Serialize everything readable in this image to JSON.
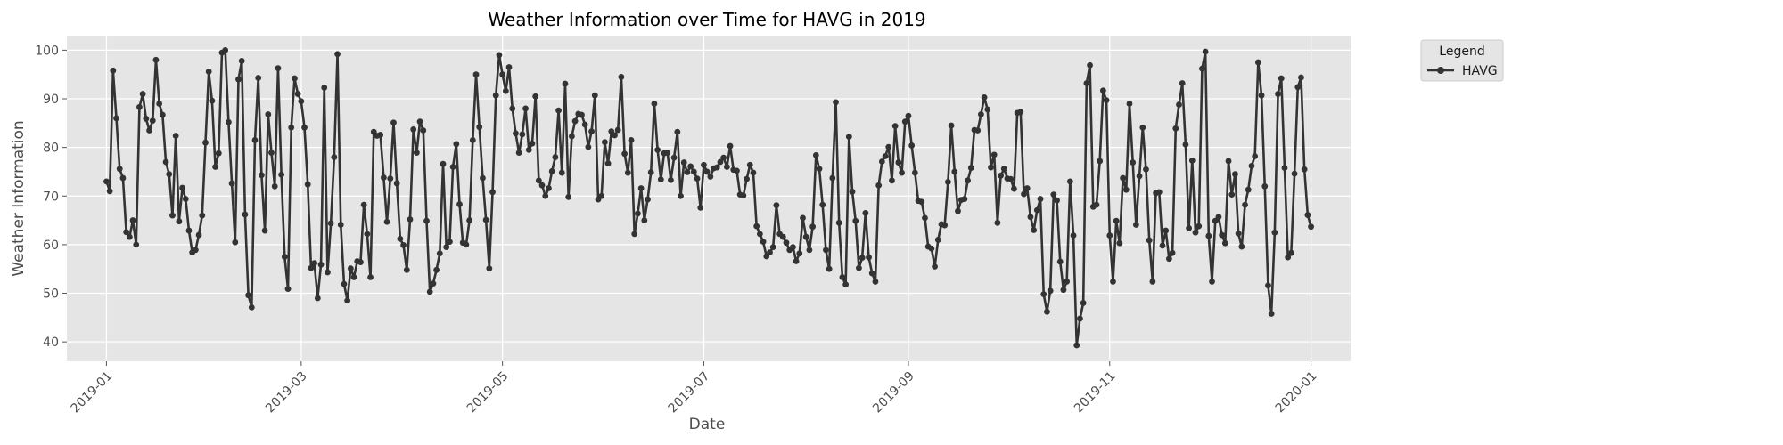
{
  "chart_data": {
    "type": "line",
    "title": "Weather Information over Time for HAVG in 2019",
    "xlabel": "Date",
    "ylabel": "Weather Information",
    "xlim": [
      "2018-12-20",
      "2020-01-13"
    ],
    "ylim": [
      36,
      103
    ],
    "x_ticks": [
      "2019-01",
      "2019-03",
      "2019-05",
      "2019-07",
      "2019-09",
      "2019-11",
      "2020-01"
    ],
    "y_ticks": [
      40,
      50,
      60,
      70,
      80,
      90,
      100
    ],
    "grid": true,
    "legend": {
      "title": "Legend",
      "placement": "outside-right-top",
      "entries": [
        "HAVG"
      ]
    },
    "colors": {
      "background": "#e5e5e5",
      "grid": "#ffffff",
      "line": "#333333"
    },
    "series": [
      {
        "name": "HAVG",
        "start_date": "2019-01-01",
        "frequency": "daily",
        "values": [
          73,
          71,
          95.8,
          86,
          75.6,
          73.7,
          62.6,
          61.6,
          65,
          60,
          88.3,
          91,
          85.9,
          83.5,
          85.5,
          98,
          89,
          86.7,
          77,
          74.5,
          66,
          82.4,
          64.8,
          71.7,
          69.4,
          62.9,
          58.4,
          58.9,
          62,
          66,
          81,
          95.6,
          89.6,
          76,
          78.8,
          99.5,
          100,
          85.2,
          72.6,
          60.5,
          94,
          97.8,
          66.2,
          49.6,
          47.1,
          81.5,
          94.3,
          74.3,
          62.9,
          86.8,
          78.9,
          72,
          96.3,
          74.4,
          57.5,
          50.9,
          84.1,
          94.2,
          91,
          89.5,
          84.1,
          72.4,
          55.2,
          56.2,
          49,
          55.9,
          92.3,
          54.3,
          64.4,
          78,
          99.2,
          64.1,
          51.9,
          48.5,
          55.1,
          53.3,
          56.6,
          56.4,
          68.2,
          62.2,
          53.3,
          83.2,
          82.4,
          82.6,
          73.8,
          64.7,
          73.6,
          85.1,
          72.6,
          61.2,
          59.9,
          54.8,
          65.2,
          83.7,
          78.9,
          85.3,
          83.5,
          64.9,
          50.3,
          52,
          54.8,
          58.2,
          76.6,
          59.5,
          60.6,
          76,
          80.7,
          68.3,
          60.4,
          60,
          65,
          81.5,
          95,
          84.2,
          73.7,
          65.1,
          55.1,
          70.8,
          90.7,
          99,
          95,
          91.6,
          96.5,
          88,
          82.9,
          78.9,
          82.7,
          88,
          79.5,
          80.8,
          90.5,
          73.2,
          72.2,
          70,
          71.6,
          75.1,
          78,
          87.6,
          74.8,
          93.1,
          69.8,
          82.3,
          85.4,
          86.9,
          86.7,
          84.7,
          80.1,
          83.3,
          90.7,
          69.3,
          70,
          81.1,
          76.7,
          83.3,
          82.5,
          83.6,
          94.5,
          78.7,
          74.8,
          81.5,
          62.2,
          66.4,
          71.6,
          65,
          69.3,
          74.9,
          89,
          79.5,
          73.4,
          78.8,
          78.9,
          73.3,
          77.9,
          83.2,
          70,
          76.9,
          74.9,
          76.1,
          75,
          73.6,
          67.6,
          76.4,
          75,
          74,
          75.7,
          75.9,
          77,
          77.9,
          76,
          80.3,
          75.4,
          75.2,
          70.3,
          70.1,
          73.5,
          76.4,
          74.8,
          63.8,
          62.2,
          60.6,
          57.6,
          58.4,
          59.5,
          68.1,
          62.2,
          61.6,
          60.4,
          58.9,
          59.5,
          56.6,
          58.2,
          65.5,
          61.6,
          58.9,
          63.7,
          78.4,
          75.6,
          68.2,
          58.9,
          55,
          73.7,
          89.3,
          64.5,
          53.3,
          51.8,
          82.2,
          70.9,
          64.9,
          55.2,
          57.3,
          66.5,
          57.4,
          54.1,
          52.4,
          72.2,
          77.1,
          78.2,
          80.1,
          73.2,
          84.4,
          76.9,
          74.8,
          85.3,
          86.5,
          80.4,
          74.8,
          69,
          68.8,
          65.5,
          59.6,
          59.2,
          55.5,
          61,
          64.2,
          64,
          72.9,
          84.5,
          75,
          66.9,
          69.2,
          69.4,
          73.2,
          75.8,
          83.6,
          83.5,
          86.8,
          90.3,
          87.8,
          75.9,
          78.5,
          64.5,
          74.2,
          75.6,
          73.6,
          73.5,
          71.5,
          87.1,
          87.3,
          70.4,
          71.6,
          65.7,
          63,
          67.1,
          69.4,
          49.8,
          46.2,
          50.5,
          70.3,
          69.1,
          56.5,
          50.7,
          52.4,
          73,
          61.9,
          39.3,
          44.8,
          48,
          93.2,
          96.9,
          67.8,
          68.2,
          77.2,
          91.7,
          89.7,
          61.9,
          52.4,
          64.9,
          60.3,
          73.7,
          71.3,
          89,
          76.9,
          64.1,
          74.1,
          84.1,
          75.5,
          60.9,
          52.4,
          70.6,
          70.8,
          59.8,
          62.9,
          57.1,
          58.3,
          83.9,
          88.8,
          93.2,
          80.6,
          63.4,
          77.3,
          62.5,
          63.8,
          96.2,
          99.7,
          61.8,
          52.4,
          64.9,
          65.7,
          62,
          60.3,
          77.2,
          70.3,
          74.5,
          62.3,
          59.6,
          68.2,
          71.3,
          76.2,
          78.2,
          97.5,
          90.7,
          72,
          51.6,
          45.8,
          62.5,
          91,
          94.2,
          75.8,
          57.4,
          58.3,
          74.6,
          92.4,
          94.4,
          75.5,
          66.1,
          63.7
        ]
      }
    ]
  }
}
